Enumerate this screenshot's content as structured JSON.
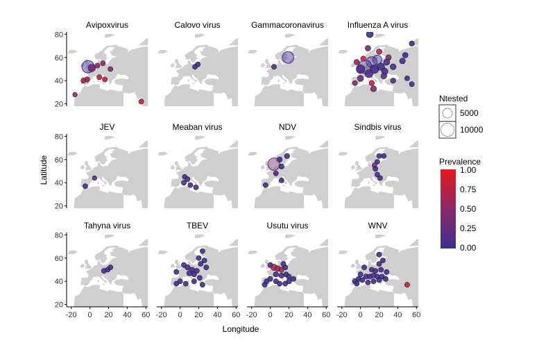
{
  "chart_data": {
    "type": "scatter",
    "xlabel": "Longitude",
    "ylabel": "Latitude",
    "xlim": [
      -25,
      62
    ],
    "ylim": [
      18,
      82
    ],
    "xticks": [
      "-20",
      "0",
      "20",
      "40",
      "60"
    ],
    "yticks": [
      "20",
      "40",
      "60",
      "80"
    ],
    "grid": false,
    "legend_size": {
      "title": "Ntested",
      "entries": [
        {
          "label": "5000",
          "value": 5000
        },
        {
          "label": "10000",
          "value": 10000
        }
      ]
    },
    "legend_color": {
      "title": "Prevalence",
      "ticks": [
        "1.00",
        "0.75",
        "0.50",
        "0.25",
        "0.00"
      ],
      "low_color": "#3b2f8f",
      "high_color": "#e8191c"
    },
    "panels": [
      {
        "title": "Avipoxvirus",
        "points": [
          {
            "lon": -2,
            "lat": 52,
            "n": 7000,
            "p": 0.05
          },
          {
            "lon": 2,
            "lat": 51,
            "n": 1500,
            "p": 0.35
          },
          {
            "lon": 8,
            "lat": 53,
            "n": 300,
            "p": 0.6
          },
          {
            "lon": 14,
            "lat": 55,
            "n": 300,
            "p": 0.45
          },
          {
            "lon": 22,
            "lat": 50,
            "n": 300,
            "p": 0.5
          },
          {
            "lon": -3,
            "lat": 41,
            "n": 400,
            "p": 0.7
          },
          {
            "lon": -7,
            "lat": 40,
            "n": 300,
            "p": 0.8
          },
          {
            "lon": 10,
            "lat": 43,
            "n": 300,
            "p": 0.85
          },
          {
            "lon": 16,
            "lat": 41,
            "n": 300,
            "p": 0.9
          },
          {
            "lon": -16,
            "lat": 28,
            "n": 200,
            "p": 0.6
          },
          {
            "lon": 55,
            "lat": 22,
            "n": 300,
            "p": 0.9
          }
        ]
      },
      {
        "title": "Calovo virus",
        "points": [
          {
            "lon": 16,
            "lat": 52,
            "n": 300,
            "p": 0.05
          },
          {
            "lon": 19,
            "lat": 54,
            "n": 300,
            "p": 0.1
          }
        ]
      },
      {
        "title": "Gammacoronavirus",
        "points": [
          {
            "lon": 19,
            "lat": 60,
            "n": 6000,
            "p": 0.05
          },
          {
            "lon": 4,
            "lat": 52,
            "n": 300,
            "p": 0.2
          }
        ]
      },
      {
        "title": "Influenza A virus",
        "points": [
          {
            "lon": 10,
            "lat": 80,
            "n": 1200,
            "p": 0.05
          },
          {
            "lon": 5,
            "lat": 52,
            "n": 9000,
            "p": 0.05
          },
          {
            "lon": 12,
            "lat": 56,
            "n": 5000,
            "p": 0.08
          },
          {
            "lon": 18,
            "lat": 58,
            "n": 3000,
            "p": 0.06
          },
          {
            "lon": 0,
            "lat": 50,
            "n": 2500,
            "p": 0.1
          },
          {
            "lon": 15,
            "lat": 50,
            "n": 2500,
            "p": 0.07
          },
          {
            "lon": 9,
            "lat": 46,
            "n": 2000,
            "p": 0.15
          },
          {
            "lon": 22,
            "lat": 52,
            "n": 1500,
            "p": 0.05
          },
          {
            "lon": 26,
            "lat": 48,
            "n": 1000,
            "p": 0.05
          },
          {
            "lon": 28,
            "lat": 56,
            "n": 800,
            "p": 0.1
          },
          {
            "lon": 35,
            "lat": 52,
            "n": 700,
            "p": 0.08
          },
          {
            "lon": 45,
            "lat": 57,
            "n": 600,
            "p": 0.05
          },
          {
            "lon": 48,
            "lat": 62,
            "n": 500,
            "p": 0.05
          },
          {
            "lon": 55,
            "lat": 72,
            "n": 400,
            "p": 0.1
          },
          {
            "lon": 8,
            "lat": 68,
            "n": 500,
            "p": 0.35
          },
          {
            "lon": 20,
            "lat": 65,
            "n": 500,
            "p": 0.7
          },
          {
            "lon": 3,
            "lat": 59,
            "n": 400,
            "p": 0.9
          },
          {
            "lon": 25,
            "lat": 44,
            "n": 600,
            "p": 0.25
          },
          {
            "lon": 0,
            "lat": 42,
            "n": 800,
            "p": 0.3
          },
          {
            "lon": 12,
            "lat": 38,
            "n": 400,
            "p": 0.8
          },
          {
            "lon": 14,
            "lat": 33,
            "n": 700,
            "p": 0.45
          },
          {
            "lon": 35,
            "lat": 40,
            "n": 400,
            "p": 0.2
          },
          {
            "lon": 50,
            "lat": 42,
            "n": 300,
            "p": 0.05
          },
          {
            "lon": 55,
            "lat": 37,
            "n": 300,
            "p": 0.05
          },
          {
            "lon": -6,
            "lat": 38,
            "n": 300,
            "p": 0.5
          },
          {
            "lon": -4,
            "lat": 56,
            "n": 500,
            "p": 0.6
          },
          {
            "lon": 30,
            "lat": 60,
            "n": 500,
            "p": 0.4
          }
        ]
      },
      {
        "title": "JEV",
        "points": [
          {
            "lon": -5,
            "lat": 37,
            "n": 300,
            "p": 0.1
          },
          {
            "lon": 5,
            "lat": 44,
            "n": 200,
            "p": 0.15
          }
        ]
      },
      {
        "title": "Meaban virus",
        "points": [
          {
            "lon": 5,
            "lat": 45,
            "n": 300,
            "p": 0.05
          },
          {
            "lon": 8,
            "lat": 43,
            "n": 300,
            "p": 0.05
          },
          {
            "lon": 4,
            "lat": 40,
            "n": 300,
            "p": 0.05
          },
          {
            "lon": 11,
            "lat": 38,
            "n": 300,
            "p": 0.05
          },
          {
            "lon": 17,
            "lat": 36,
            "n": 300,
            "p": 0.05
          }
        ]
      },
      {
        "title": "NDV",
        "points": [
          {
            "lon": 4,
            "lat": 56,
            "n": 7000,
            "p": 0.35
          },
          {
            "lon": 10,
            "lat": 60,
            "n": 400,
            "p": 0.1
          },
          {
            "lon": 18,
            "lat": 63,
            "n": 400,
            "p": 0.05
          },
          {
            "lon": 12,
            "lat": 54,
            "n": 400,
            "p": 0.05
          },
          {
            "lon": 6,
            "lat": 48,
            "n": 300,
            "p": 0.1
          },
          {
            "lon": 12,
            "lat": 42,
            "n": 300,
            "p": 0.05
          },
          {
            "lon": -5,
            "lat": 38,
            "n": 300,
            "p": 0.1
          }
        ]
      },
      {
        "title": "Sindbis virus",
        "points": [
          {
            "lon": 20,
            "lat": 63,
            "n": 300,
            "p": 0.05
          },
          {
            "lon": 25,
            "lat": 63,
            "n": 300,
            "p": 0.1
          },
          {
            "lon": 18,
            "lat": 58,
            "n": 300,
            "p": 0.05
          },
          {
            "lon": 15,
            "lat": 55,
            "n": 300,
            "p": 0.4
          },
          {
            "lon": 16,
            "lat": 52,
            "n": 300,
            "p": 0.05
          },
          {
            "lon": 18,
            "lat": 47,
            "n": 300,
            "p": 0.05
          },
          {
            "lon": 21,
            "lat": 44,
            "n": 300,
            "p": 0.05
          }
        ]
      },
      {
        "title": "Tahyna virus",
        "points": [
          {
            "lon": 15,
            "lat": 49,
            "n": 300,
            "p": 0.05
          },
          {
            "lon": 19,
            "lat": 50,
            "n": 300,
            "p": 0.05
          },
          {
            "lon": 22,
            "lat": 52,
            "n": 300,
            "p": 0.05
          }
        ]
      },
      {
        "title": "TBEV",
        "points": [
          {
            "lon": -4,
            "lat": 48,
            "n": 300,
            "p": 0.05
          },
          {
            "lon": 4,
            "lat": 54,
            "n": 300,
            "p": 0.05
          },
          {
            "lon": 8,
            "lat": 52,
            "n": 400,
            "p": 0.05
          },
          {
            "lon": 13,
            "lat": 50,
            "n": 300,
            "p": 0.05
          },
          {
            "lon": 10,
            "lat": 47,
            "n": 500,
            "p": 0.05
          },
          {
            "lon": 15,
            "lat": 46,
            "n": 300,
            "p": 0.05
          },
          {
            "lon": 18,
            "lat": 49,
            "n": 300,
            "p": 0.05
          },
          {
            "lon": 22,
            "lat": 55,
            "n": 300,
            "p": 0.05
          },
          {
            "lon": 20,
            "lat": 60,
            "n": 300,
            "p": 0.05
          },
          {
            "lon": 24,
            "lat": 66,
            "n": 300,
            "p": 0.05
          },
          {
            "lon": 26,
            "lat": 58,
            "n": 300,
            "p": 0.05
          },
          {
            "lon": 28,
            "lat": 52,
            "n": 300,
            "p": 0.05
          },
          {
            "lon": 21,
            "lat": 43,
            "n": 300,
            "p": 0.05
          },
          {
            "lon": 15,
            "lat": 40,
            "n": 300,
            "p": 0.05
          },
          {
            "lon": 0,
            "lat": 40,
            "n": 300,
            "p": 0.05
          },
          {
            "lon": -4,
            "lat": 38,
            "n": 300,
            "p": 0.05
          },
          {
            "lon": 6,
            "lat": 38,
            "n": 300,
            "p": 0.05
          },
          {
            "lon": 24,
            "lat": 37,
            "n": 300,
            "p": 0.05
          }
        ]
      },
      {
        "title": "Usutu virus",
        "points": [
          {
            "lon": 4,
            "lat": 52,
            "n": 900,
            "p": 0.75
          },
          {
            "lon": 8,
            "lat": 51,
            "n": 500,
            "p": 0.7
          },
          {
            "lon": 12,
            "lat": 50,
            "n": 400,
            "p": 0.65
          },
          {
            "lon": 0,
            "lat": 54,
            "n": 300,
            "p": 0.1
          },
          {
            "lon": 16,
            "lat": 52,
            "n": 300,
            "p": 0.05
          },
          {
            "lon": 6,
            "lat": 46,
            "n": 400,
            "p": 0.05
          },
          {
            "lon": 12,
            "lat": 45,
            "n": 400,
            "p": 0.15
          },
          {
            "lon": 17,
            "lat": 46,
            "n": 300,
            "p": 0.05
          },
          {
            "lon": 20,
            "lat": 44,
            "n": 300,
            "p": 0.05
          },
          {
            "lon": 25,
            "lat": 42,
            "n": 300,
            "p": 0.05
          },
          {
            "lon": 20,
            "lat": 40,
            "n": 300,
            "p": 0.05
          },
          {
            "lon": 0,
            "lat": 42,
            "n": 300,
            "p": 0.05
          },
          {
            "lon": -4,
            "lat": 40,
            "n": 300,
            "p": 0.05
          },
          {
            "lon": 6,
            "lat": 40,
            "n": 300,
            "p": 0.05
          },
          {
            "lon": 10,
            "lat": 38,
            "n": 300,
            "p": 0.05
          },
          {
            "lon": 16,
            "lat": 38,
            "n": 300,
            "p": 0.05
          },
          {
            "lon": -6,
            "lat": 37,
            "n": 300,
            "p": 0.05
          },
          {
            "lon": 14,
            "lat": 55,
            "n": 300,
            "p": 0.05
          }
        ]
      },
      {
        "title": "WNV",
        "points": [
          {
            "lon": 20,
            "lat": 63,
            "n": 300,
            "p": 0.05
          },
          {
            "lon": 24,
            "lat": 58,
            "n": 300,
            "p": 0.05
          },
          {
            "lon": 20,
            "lat": 55,
            "n": 300,
            "p": 0.05
          },
          {
            "lon": 4,
            "lat": 52,
            "n": 300,
            "p": 0.05
          },
          {
            "lon": 12,
            "lat": 50,
            "n": 300,
            "p": 0.05
          },
          {
            "lon": 16,
            "lat": 49,
            "n": 300,
            "p": 0.05
          },
          {
            "lon": 22,
            "lat": 50,
            "n": 300,
            "p": 0.05
          },
          {
            "lon": 28,
            "lat": 48,
            "n": 300,
            "p": 0.05
          },
          {
            "lon": 0,
            "lat": 46,
            "n": 300,
            "p": 0.05
          },
          {
            "lon": 6,
            "lat": 44,
            "n": 400,
            "p": 0.05
          },
          {
            "lon": 10,
            "lat": 44,
            "n": 400,
            "p": 0.05
          },
          {
            "lon": 14,
            "lat": 45,
            "n": 300,
            "p": 0.05
          },
          {
            "lon": 18,
            "lat": 44,
            "n": 300,
            "p": 0.05
          },
          {
            "lon": 23,
            "lat": 44,
            "n": 300,
            "p": 0.05
          },
          {
            "lon": 27,
            "lat": 42,
            "n": 300,
            "p": 0.05
          },
          {
            "lon": -2,
            "lat": 42,
            "n": 300,
            "p": 0.05
          },
          {
            "lon": -6,
            "lat": 40,
            "n": 300,
            "p": 0.05
          },
          {
            "lon": 2,
            "lat": 41,
            "n": 300,
            "p": 0.05
          },
          {
            "lon": -4,
            "lat": 38,
            "n": 300,
            "p": 0.05
          },
          {
            "lon": 8,
            "lat": 39,
            "n": 300,
            "p": 0.05
          },
          {
            "lon": 14,
            "lat": 40,
            "n": 300,
            "p": 0.05
          },
          {
            "lon": 20,
            "lat": 41,
            "n": 300,
            "p": 0.05
          },
          {
            "lon": 50,
            "lat": 37,
            "n": 300,
            "p": 0.85
          }
        ]
      }
    ]
  }
}
